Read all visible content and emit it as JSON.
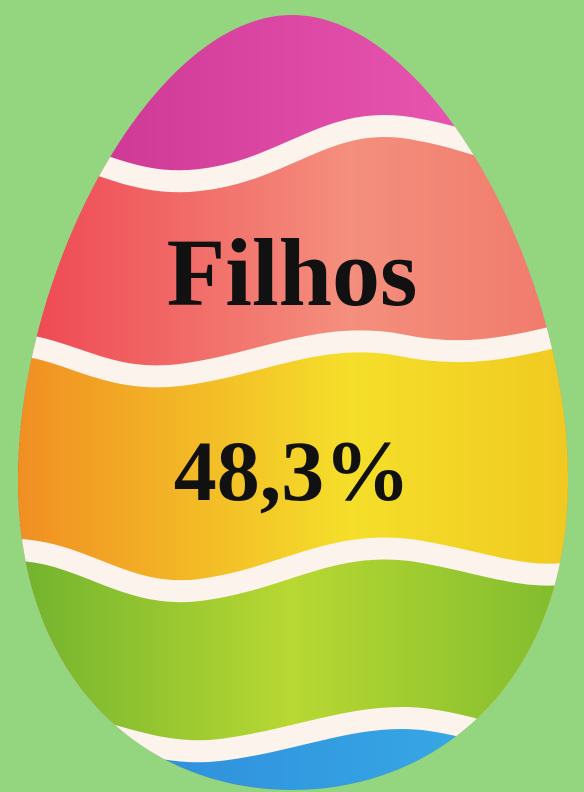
{
  "egg": {
    "label": "Filhos",
    "percentage": "48,3%"
  }
}
